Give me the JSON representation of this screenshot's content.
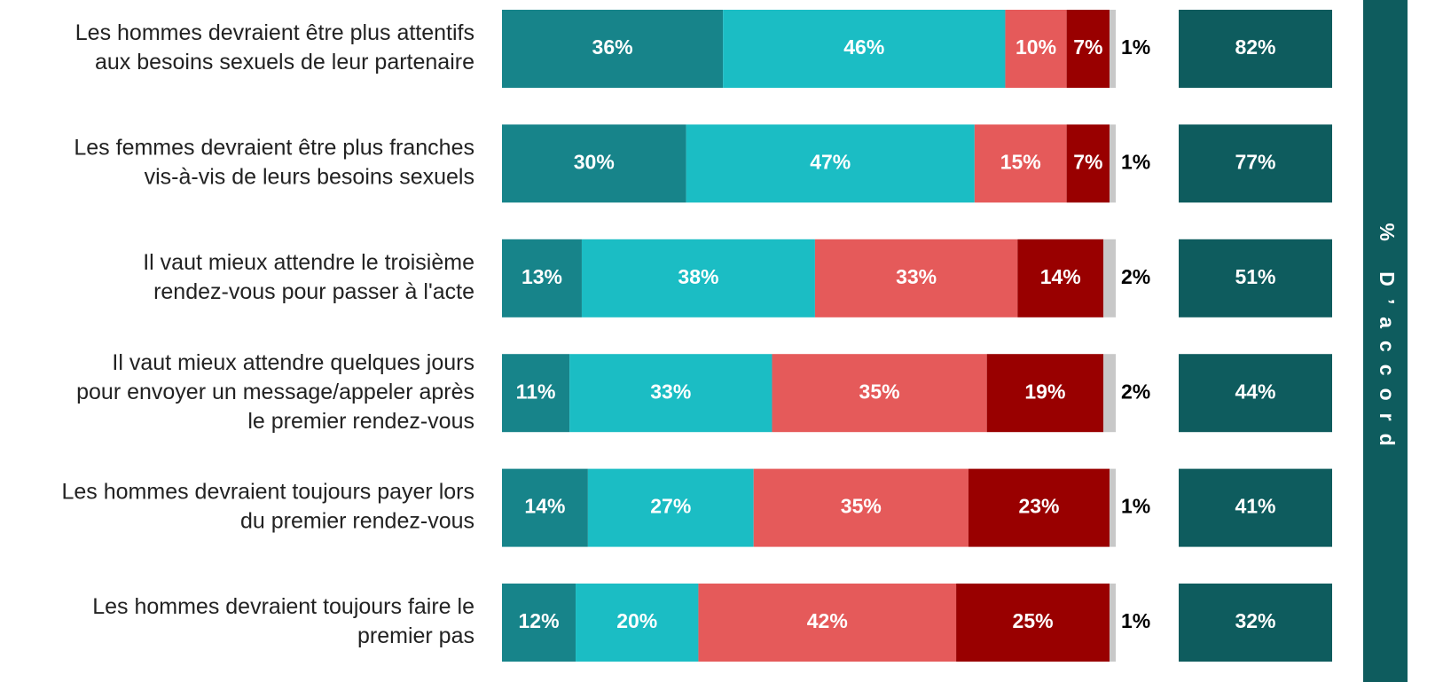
{
  "chart_data": {
    "type": "stacked-bar",
    "orientation": "horizontal",
    "categories": [
      [
        "Les hommes devraient être plus attentifs",
        "aux besoins sexuels de leur partenaire"
      ],
      [
        "Les femmes devraient être plus franches",
        "vis-à-vis de leurs besoins sexuels"
      ],
      [
        "Il vaut mieux attendre le troisième",
        "rendez-vous pour passer à l'acte"
      ],
      [
        "Il vaut mieux attendre quelques jours",
        "pour envoyer un message/appeler après",
        "le premier rendez-vous"
      ],
      [
        "Les hommes devraient toujours payer lors",
        "du premier rendez-vous"
      ],
      [
        "Les hommes devraient toujours faire le",
        "premier pas"
      ]
    ],
    "xlim": [
      0,
      100
    ],
    "series": [
      {
        "color": "#17848a",
        "values": [
          36,
          30,
          13,
          11,
          14,
          12
        ],
        "value_labels": [
          "36%",
          "30%",
          "13%",
          "11%",
          "14%",
          "12%"
        ]
      },
      {
        "color": "#1bbdc4",
        "values": [
          46,
          47,
          38,
          33,
          27,
          20
        ],
        "value_labels": [
          "46%",
          "47%",
          "38%",
          "33%",
          "27%",
          "20%"
        ]
      },
      {
        "color": "#e55a5a",
        "values": [
          10,
          15,
          33,
          35,
          35,
          42
        ],
        "value_labels": [
          "10%",
          "15%",
          "33%",
          "35%",
          "35%",
          "42%"
        ]
      },
      {
        "color": "#990000",
        "values": [
          7,
          7,
          14,
          19,
          23,
          25
        ],
        "value_labels": [
          "7%",
          "7%",
          "14%",
          "19%",
          "23%",
          "25%"
        ]
      },
      {
        "color": "#c8c8c8",
        "values": [
          1,
          1,
          2,
          2,
          1,
          1
        ],
        "value_labels": [
          "1%",
          "1%",
          "2%",
          "2%",
          "1%",
          "1%"
        ]
      }
    ],
    "totals": {
      "title": "% D’accord",
      "color": "#0e5c5e",
      "values": [
        82,
        77,
        51,
        44,
        41,
        32
      ],
      "value_labels": [
        "82%",
        "77%",
        "51%",
        "44%",
        "41%",
        "32%"
      ]
    }
  }
}
